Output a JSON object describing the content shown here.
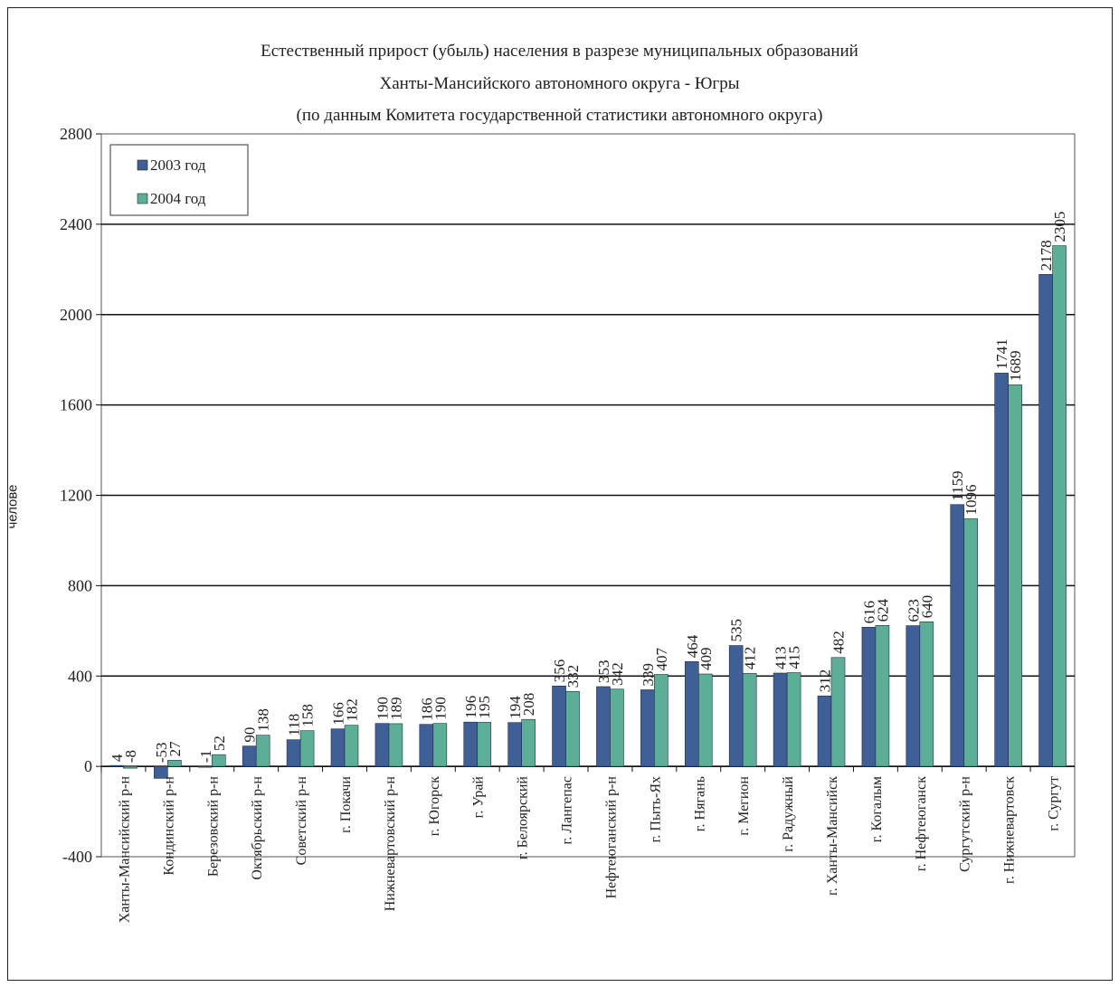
{
  "chart_data": {
    "type": "bar",
    "title_lines": [
      "Естественный прирост (убыль) населения в разрезе муниципальных образований",
      "Ханты-Мансийского автономного округа - Югры",
      "(по данным Комитета государственной статистики автономного округа)"
    ],
    "ylabel": "челове",
    "ylim": [
      -400,
      2800
    ],
    "yticks": [
      -400,
      0,
      400,
      800,
      1200,
      1600,
      2000,
      2400,
      2800
    ],
    "grid": true,
    "legend_position": "top-left",
    "categories": [
      "Ханты-Мансийский р-н",
      "Кондинский р-н",
      "Березовский р-н",
      "Октябрьский р-н",
      "Советский р-н",
      "г. Покачи",
      "Нижневартовский р-н",
      "г. Югорск",
      "г. Урай",
      "г. Белоярский",
      "г. Лангепас",
      "Нефтеюганский р-н",
      "г. Пыть-Ях",
      "г. Нягань",
      "г. Мегион",
      "г. Радужный",
      "г. Ханты-Мансийск",
      "г. Когалым",
      "г. Нефтеюганск",
      "Сургутский р-н",
      "г. Нижневартовск",
      "г. Сургут"
    ],
    "series": [
      {
        "name": "2003 год",
        "color": "#3f5f96",
        "values": [
          4,
          -53,
          -1,
          90,
          118,
          166,
          190,
          186,
          196,
          194,
          356,
          353,
          339,
          464,
          535,
          413,
          312,
          616,
          623,
          1159,
          1741,
          2178
        ],
        "value_labels": [
          "4",
          "-53",
          "-1",
          "90",
          "118",
          "166",
          "190",
          "186",
          "196",
          "194",
          "356",
          "353",
          "339",
          "464",
          "535",
          "413",
          "312",
          "616",
          "623",
          "1159",
          "1741",
          "2178"
        ]
      },
      {
        "name": "2004 год",
        "color": "#5cae96",
        "values": [
          -8,
          27,
          52,
          138,
          158,
          182,
          189,
          190,
          195,
          208,
          332,
          342,
          407,
          409,
          412,
          415,
          482,
          624,
          640,
          1096,
          1689,
          2305
        ],
        "value_labels": [
          "-8",
          "27",
          "52",
          "138",
          "158",
          "182",
          "189",
          "190",
          "195",
          "208",
          "332",
          "342",
          "407",
          "409",
          "412",
          "415",
          "482",
          "624",
          "640",
          "1096",
          "1689",
          "2305"
        ]
      }
    ]
  }
}
